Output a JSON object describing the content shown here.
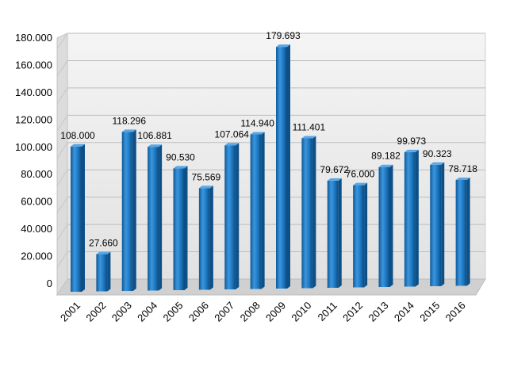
{
  "chart_data": {
    "type": "bar",
    "title": "",
    "xlabel": "",
    "ylabel": "",
    "categories": [
      "2001",
      "2002",
      "2003",
      "2004",
      "2005",
      "2006",
      "2007",
      "2008",
      "2009",
      "2010",
      "2011",
      "2012",
      "2013",
      "2014",
      "2015",
      "2016"
    ],
    "values": [
      108000,
      27660,
      118296,
      106881,
      90530,
      75569,
      107064,
      114940,
      179693,
      111401,
      79672,
      76000,
      89182,
      99973,
      90323,
      78718
    ],
    "data_labels": [
      "108.000",
      "27.660",
      "118.296",
      "106.881",
      "90.530",
      "75.569",
      "107.064",
      "114.940",
      "179.693",
      "111.401",
      "79.672",
      "76.000",
      "89.182",
      "99.973",
      "90.323",
      "78.718"
    ],
    "ylim": [
      0,
      180000
    ],
    "yticks": [
      0,
      20000,
      40000,
      60000,
      80000,
      100000,
      120000,
      140000,
      160000,
      180000
    ],
    "ytick_labels": [
      "0",
      "20.000",
      "40.000",
      "60.000",
      "80.000",
      "100.000",
      "120.000",
      "140.000",
      "160.000",
      "180.000"
    ],
    "grid": true,
    "legend": "none",
    "style": "3d",
    "colors": {
      "bar": "#1f78c1",
      "bar_dark": "#0d4f87",
      "bar_light": "#5aa7e6",
      "wall": "#e9e9e9",
      "floor": "#d0d0d0",
      "grid": "#bdbdbd"
    }
  }
}
